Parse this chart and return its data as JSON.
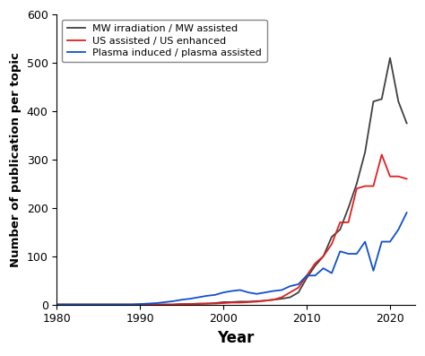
{
  "title": "",
  "xlabel": "Year",
  "ylabel": "Number of publication per topic",
  "xlim": [
    1980,
    2023
  ],
  "ylim": [
    0,
    600
  ],
  "yticks": [
    0,
    100,
    200,
    300,
    400,
    500,
    600
  ],
  "xticks": [
    1980,
    1990,
    2000,
    2010,
    2020
  ],
  "legend": {
    "MW": "MW irradiation / MW assisted",
    "US": "US assisted / US enhanced",
    "Plasma": "Plasma induced / plasma assisted"
  },
  "MW": {
    "years": [
      1980,
      1981,
      1982,
      1983,
      1984,
      1985,
      1986,
      1987,
      1988,
      1989,
      1990,
      1991,
      1992,
      1993,
      1994,
      1995,
      1996,
      1997,
      1998,
      1999,
      2000,
      2001,
      2002,
      2003,
      2004,
      2005,
      2006,
      2007,
      2008,
      2009,
      2010,
      2011,
      2012,
      2013,
      2014,
      2015,
      2016,
      2017,
      2018,
      2019,
      2020,
      2021,
      2022
    ],
    "values": [
      0,
      0,
      0,
      0,
      0,
      0,
      0,
      0,
      0,
      0,
      0,
      0,
      0,
      0,
      0,
      1,
      1,
      2,
      2,
      3,
      5,
      5,
      6,
      6,
      7,
      8,
      10,
      12,
      15,
      25,
      55,
      80,
      100,
      140,
      155,
      200,
      250,
      315,
      420,
      425,
      510,
      420,
      375
    ]
  },
  "US": {
    "years": [
      1980,
      1981,
      1982,
      1983,
      1984,
      1985,
      1986,
      1987,
      1988,
      1989,
      1990,
      1991,
      1992,
      1993,
      1994,
      1995,
      1996,
      1997,
      1998,
      1999,
      2000,
      2001,
      2002,
      2003,
      2004,
      2005,
      2006,
      2007,
      2008,
      2009,
      2010,
      2011,
      2012,
      2013,
      2014,
      2015,
      2016,
      2017,
      2018,
      2019,
      2020,
      2021,
      2022
    ],
    "values": [
      0,
      0,
      0,
      0,
      0,
      0,
      0,
      0,
      0,
      0,
      0,
      0,
      0,
      0,
      0,
      1,
      1,
      1,
      2,
      2,
      3,
      4,
      4,
      5,
      6,
      8,
      10,
      15,
      25,
      35,
      60,
      85,
      100,
      125,
      170,
      170,
      240,
      245,
      245,
      310,
      265,
      265,
      260
    ]
  },
  "Plasma": {
    "years": [
      1980,
      1981,
      1982,
      1983,
      1984,
      1985,
      1986,
      1987,
      1988,
      1989,
      1990,
      1991,
      1992,
      1993,
      1994,
      1995,
      1996,
      1997,
      1998,
      1999,
      2000,
      2001,
      2002,
      2003,
      2004,
      2005,
      2006,
      2007,
      2008,
      2009,
      2010,
      2011,
      2012,
      2013,
      2014,
      2015,
      2016,
      2017,
      2018,
      2019,
      2020,
      2021,
      2022
    ],
    "values": [
      0,
      0,
      0,
      0,
      0,
      0,
      0,
      0,
      0,
      0,
      1,
      2,
      3,
      5,
      7,
      10,
      12,
      15,
      18,
      20,
      25,
      28,
      30,
      25,
      22,
      25,
      28,
      30,
      38,
      42,
      60,
      60,
      75,
      65,
      110,
      105,
      105,
      130,
      70,
      130,
      130,
      155,
      190
    ]
  },
  "MW_color": "#404040",
  "US_color": "#e02020",
  "Plasma_color": "#1050cc",
  "figsize": [
    4.74,
    3.97
  ],
  "dpi": 100
}
